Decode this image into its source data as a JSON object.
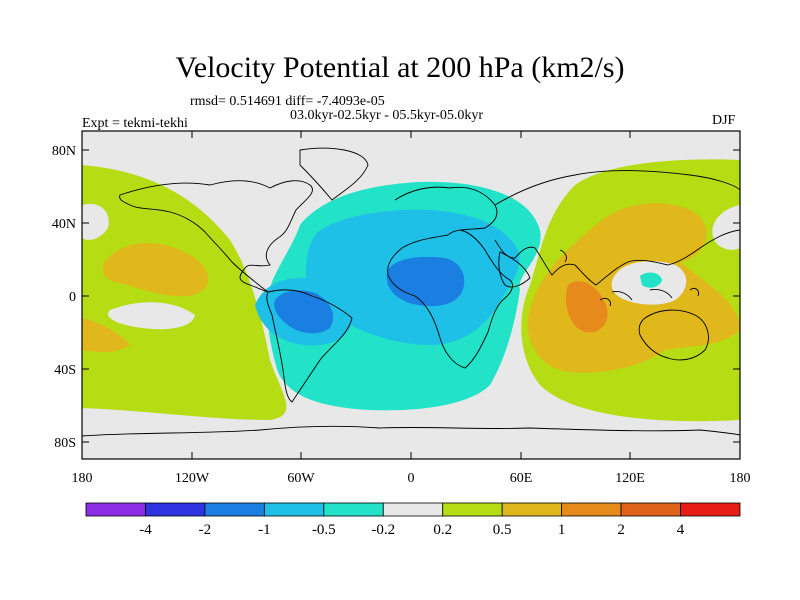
{
  "title": "Velocity Potential at 200 hPa (km2/s)",
  "stats": "rmsd= 0.514691 diff= -7.4093e-05",
  "periods": "03.0kyr-02.5kyr - 05.5kyr-05.0kyr",
  "experiment": "Expt = tekmi-tekhi",
  "season": "DJF",
  "lat_labels": [
    "80N",
    "40N",
    "0",
    "40S",
    "80S"
  ],
  "lon_labels": [
    "180",
    "120W",
    "60W",
    "0",
    "60E",
    "120E",
    "180"
  ],
  "colorbar": {
    "colors": [
      "#8c2ee8",
      "#2d33df",
      "#1a7fe0",
      "#1ec0e8",
      "#22e3c8",
      "#e8e8e8",
      "#b6dc14",
      "#e0b81c",
      "#e68a1c",
      "#e0631a",
      "#e81c14"
    ],
    "labels": [
      "-4",
      "-2",
      "-1",
      "-0.5",
      "-0.2",
      "0.2",
      "0.5",
      "1",
      "2",
      "4"
    ]
  }
}
